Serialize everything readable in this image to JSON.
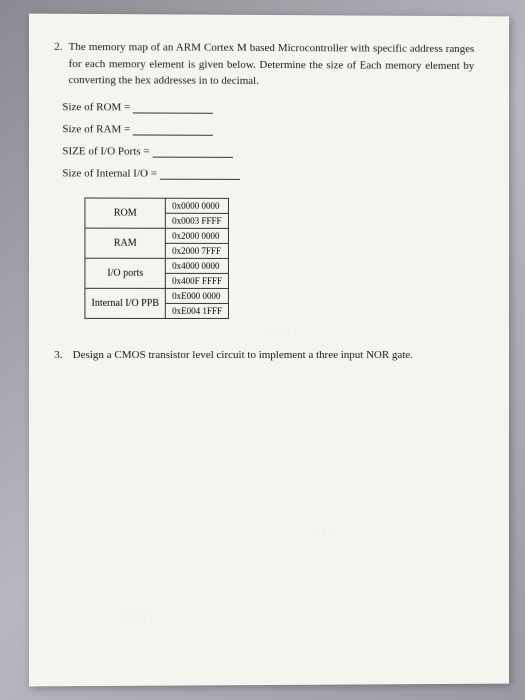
{
  "q2": {
    "number": "2.",
    "text": "The memory map of an ARM Cortex M based Microcontroller with specific address ranges for each memory element is given below. Determine the size of Each memory element by converting the hex addresses in to decimal.",
    "lines": [
      "Size of ROM =",
      "Size of RAM =",
      "SIZE of I/O Ports =",
      "Size of Internal I/O ="
    ]
  },
  "table": {
    "rows": [
      {
        "label": "ROM",
        "start": "0x0000 0000",
        "end": "0x0003 FFFF"
      },
      {
        "label": "RAM",
        "start": "0x2000 0000",
        "end": "0x2000 7FFF"
      },
      {
        "label": "I/O ports",
        "start": "0x4000 0000",
        "end": "0x400F FFFF"
      },
      {
        "label": "Internal I/O PPB",
        "start": "0xE000 0000",
        "end": "0xE004 1FFF"
      }
    ]
  },
  "q3": {
    "number": "3.",
    "text": "Design a CMOS transistor level circuit to implement a three input NOR gate."
  },
  "ghosts": {
    "g1": "ROM",
    "g2": "TA9",
    "g3": "DMIT."
  }
}
